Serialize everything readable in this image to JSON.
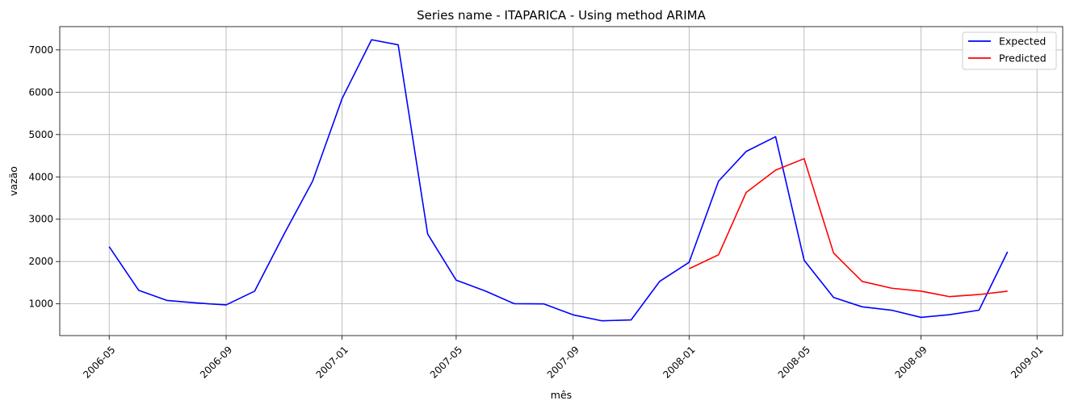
{
  "chart_data": {
    "type": "line",
    "title": "Series name - ITAPARICA - Using method ARIMA",
    "xlabel": "mês",
    "ylabel": "vazão",
    "ylim": [
      250,
      7550
    ],
    "xlim": [
      "2006-03-10",
      "2009-01-28"
    ],
    "grid": true,
    "legend_position": "top-right",
    "x_ticks": [
      "2006-05",
      "2006-09",
      "2007-01",
      "2007-05",
      "2007-09",
      "2008-01",
      "2008-05",
      "2008-09",
      "2009-01"
    ],
    "y_ticks": [
      1000,
      2000,
      3000,
      4000,
      5000,
      6000,
      7000
    ],
    "series": [
      {
        "name": "Expected",
        "color": "#0000ff",
        "x": [
          "2006-05-01",
          "2006-06-01",
          "2006-07-01",
          "2006-08-01",
          "2006-09-01",
          "2006-10-01",
          "2006-11-01",
          "2006-12-01",
          "2007-01-01",
          "2007-02-01",
          "2007-03-01",
          "2007-04-01",
          "2007-05-01",
          "2007-06-01",
          "2007-07-01",
          "2007-08-01",
          "2007-09-01",
          "2007-10-01",
          "2007-11-01",
          "2007-12-01",
          "2008-01-01",
          "2008-02-01",
          "2008-03-01",
          "2008-04-01",
          "2008-05-01",
          "2008-06-01",
          "2008-07-01",
          "2008-08-01",
          "2008-09-01",
          "2008-10-01",
          "2008-11-01",
          "2008-12-01"
        ],
        "values": [
          2350,
          1320,
          1080,
          1020,
          975,
          1300,
          2650,
          3900,
          5850,
          7240,
          7120,
          2650,
          1560,
          1300,
          1005,
          1000,
          740,
          600,
          620,
          1530,
          1980,
          3900,
          4600,
          4950,
          2030,
          1150,
          930,
          850,
          680,
          745,
          850,
          2230
        ]
      },
      {
        "name": "Predicted",
        "color": "#ff0000",
        "x": [
          "2008-01-01",
          "2008-02-01",
          "2008-03-01",
          "2008-04-01",
          "2008-05-01",
          "2008-06-01",
          "2008-07-01",
          "2008-08-01",
          "2008-09-01",
          "2008-10-01",
          "2008-11-01",
          "2008-12-01"
        ],
        "values": [
          1830,
          2160,
          3630,
          4160,
          4430,
          2200,
          1530,
          1370,
          1300,
          1170,
          1220,
          1300
        ]
      }
    ]
  }
}
